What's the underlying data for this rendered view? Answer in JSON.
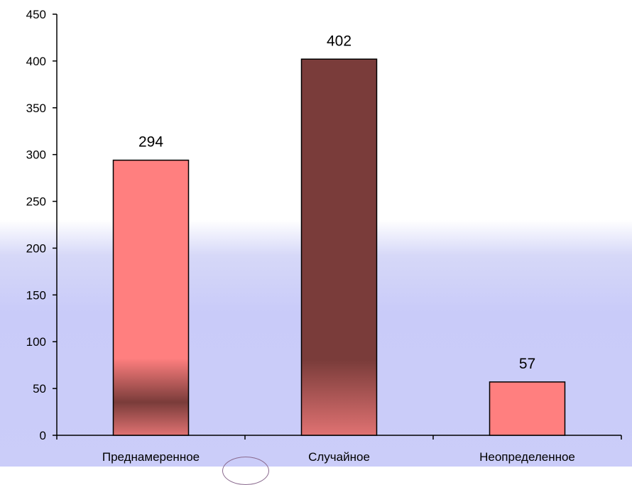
{
  "chart_data": {
    "type": "bar",
    "categories": [
      "Преднамеренное",
      "Случайное",
      "Неопределенное"
    ],
    "values": [
      294,
      402,
      57
    ],
    "title": "",
    "xlabel": "",
    "ylabel": "",
    "ylim": [
      0,
      450
    ],
    "yticks": [
      0,
      50,
      100,
      150,
      200,
      250,
      300,
      350,
      400,
      450
    ],
    "grid": false,
    "legend": "none",
    "colors": {
      "bar_pink": "#ff7f7f",
      "bar_dark": "#7a3c3a",
      "bar_pink_bottom": "#e07272",
      "axis": "#000000"
    }
  }
}
